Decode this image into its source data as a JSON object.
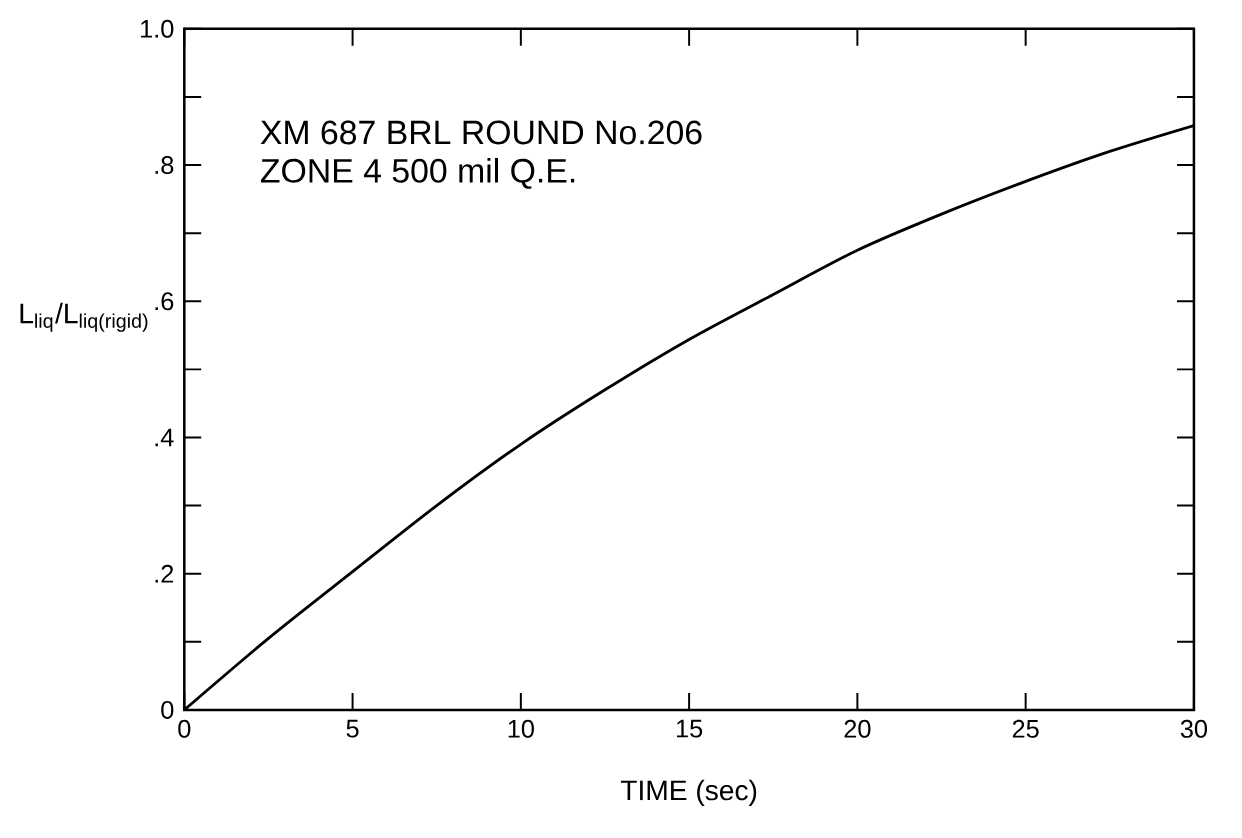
{
  "chart_data": {
    "type": "line",
    "xlabel": "TIME (sec)",
    "ylabel": "L$_{liq}$/L$_{liq(rigid)}$",
    "annotations": [
      "XM 687  BRL ROUND  No.206",
      "ZONE 4   500 mil Q.E."
    ],
    "x": [
      0,
      2.5,
      5,
      7.5,
      10,
      12.5,
      15,
      17.5,
      20,
      22.5,
      25,
      27.5,
      30
    ],
    "series": [
      {
        "color": "#000000",
        "values": [
          0,
          0.105,
          0.203,
          0.3,
          0.39,
          0.47,
          0.544,
          0.61,
          0.675,
          0.728,
          0.776,
          0.82,
          0.858
        ]
      }
    ],
    "xlim": [
      0,
      30
    ],
    "ylim": [
      0,
      1.0
    ],
    "xticks": [
      0,
      5,
      10,
      15,
      20,
      25,
      30
    ],
    "yticks": [
      {
        "value": 0,
        "label": "0"
      },
      {
        "value": 0.1,
        "label": null
      },
      {
        "value": 0.2,
        "label": ".2"
      },
      {
        "value": 0.3,
        "label": null
      },
      {
        "value": 0.4,
        "label": ".4"
      },
      {
        "value": 0.5,
        "label": null
      },
      {
        "value": 0.6,
        "label": ".6"
      },
      {
        "value": 0.7,
        "label": null
      },
      {
        "value": 0.8,
        "label": ".8"
      },
      {
        "value": 0.9,
        "label": null
      },
      {
        "value": 1.0,
        "label": "1.0"
      }
    ],
    "marker": "none",
    "line_style": "solid"
  }
}
